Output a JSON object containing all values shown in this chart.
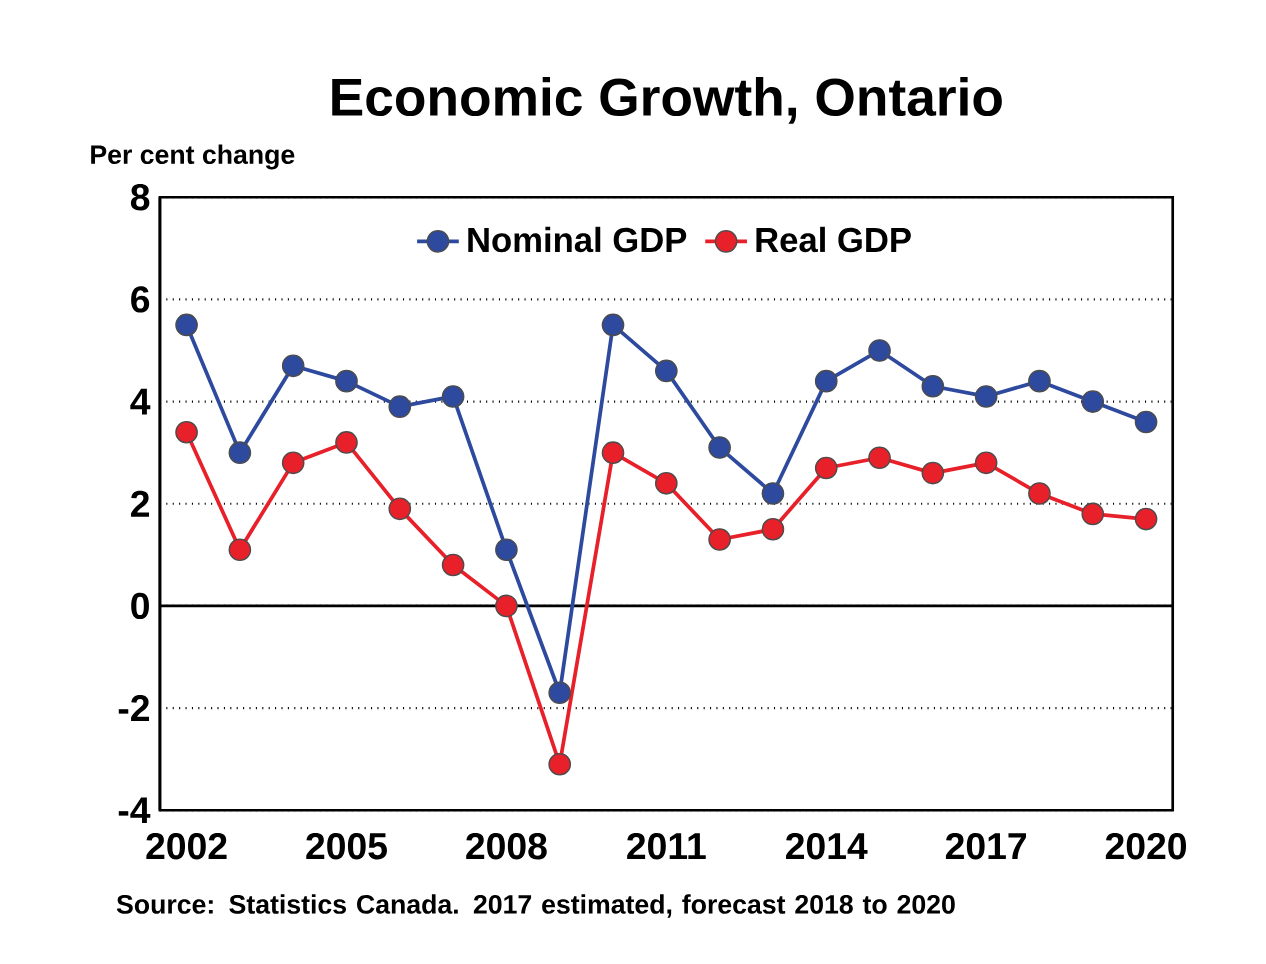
{
  "chart_data": {
    "type": "line",
    "title": "Economic Growth, Ontario",
    "ylabel": "Per cent change",
    "x": [
      2002,
      2003,
      2004,
      2005,
      2006,
      2007,
      2008,
      2009,
      2010,
      2011,
      2012,
      2013,
      2014,
      2015,
      2016,
      2017,
      2018,
      2019,
      2020
    ],
    "series": [
      {
        "name": "Nominal GDP",
        "color": "#2e4a9e",
        "values": [
          5.5,
          3.0,
          4.7,
          4.4,
          3.9,
          4.1,
          1.1,
          -1.7,
          5.5,
          4.6,
          3.1,
          2.2,
          4.4,
          5.0,
          4.3,
          4.1,
          4.4,
          4.0,
          3.6
        ]
      },
      {
        "name": "Real GDP",
        "color": "#e8202a",
        "values": [
          3.4,
          1.1,
          2.8,
          3.2,
          1.9,
          0.8,
          0.0,
          -3.1,
          3.0,
          2.4,
          1.3,
          1.5,
          2.7,
          2.9,
          2.6,
          2.8,
          2.2,
          1.8,
          1.7
        ]
      }
    ],
    "xlim": [
      2001.5,
      2020.5
    ],
    "xticks": [
      2002,
      2005,
      2008,
      2011,
      2014,
      2017,
      2020
    ],
    "ylim": [
      -4,
      8
    ],
    "yticks": [
      -4,
      -2,
      0,
      2,
      4,
      6,
      8
    ],
    "grid": "y",
    "legend": "top",
    "marker": "circle",
    "line_style": "solid",
    "annotations": [
      "Source:  Statistics Canada.   2017 estimated, forecast 2018 to 2020"
    ]
  }
}
